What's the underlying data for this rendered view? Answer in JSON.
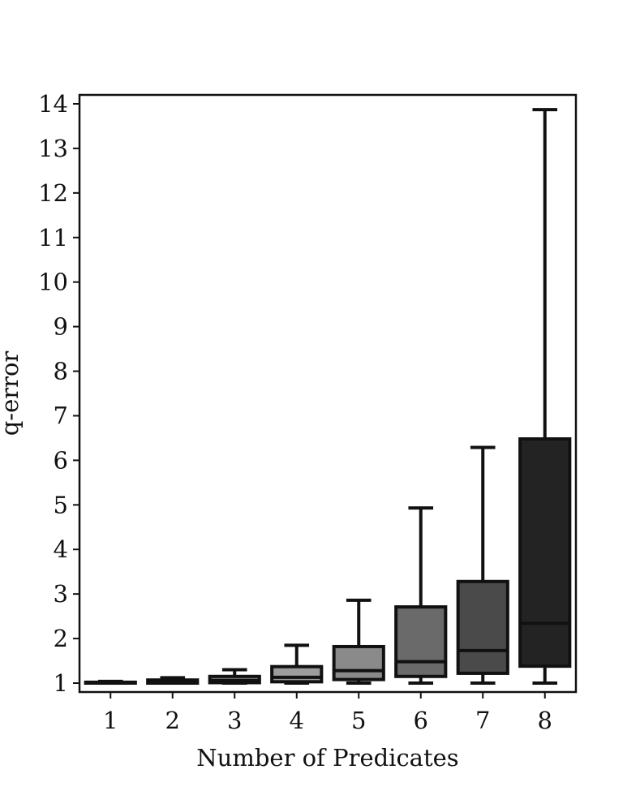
{
  "chart_data": {
    "type": "boxplot",
    "xlabel": "Number of Predicates",
    "ylabel": "q-error",
    "categories": [
      "1",
      "2",
      "3",
      "4",
      "5",
      "6",
      "7",
      "8"
    ],
    "ylim": [
      0.8,
      14.2
    ],
    "yticks": [
      1,
      2,
      3,
      4,
      5,
      6,
      7,
      8,
      9,
      10,
      11,
      12,
      13,
      14
    ],
    "grid": false,
    "legend": "none",
    "colors": [
      "#b0b0b0",
      "#9f9f9f",
      "#8e8e8e",
      "#9c9c9c",
      "#8a8a8a",
      "#6a6a6a",
      "#4a4a4a",
      "#232323"
    ],
    "boxes": [
      {
        "category": "1",
        "whisker_low": 1.0,
        "q1": 1.0,
        "median": 1.0,
        "q3": 1.02,
        "whisker_high": 1.04
      },
      {
        "category": "2",
        "whisker_low": 1.0,
        "q1": 1.0,
        "median": 1.02,
        "q3": 1.07,
        "whisker_high": 1.12
      },
      {
        "category": "3",
        "whisker_low": 1.0,
        "q1": 1.01,
        "median": 1.06,
        "q3": 1.15,
        "whisker_high": 1.3
      },
      {
        "category": "4",
        "whisker_low": 1.0,
        "q1": 1.03,
        "median": 1.13,
        "q3": 1.37,
        "whisker_high": 1.85
      },
      {
        "category": "5",
        "whisker_low": 1.0,
        "q1": 1.08,
        "median": 1.28,
        "q3": 1.82,
        "whisker_high": 2.86
      },
      {
        "category": "6",
        "whisker_low": 1.0,
        "q1": 1.15,
        "median": 1.48,
        "q3": 2.71,
        "whisker_high": 4.93
      },
      {
        "category": "7",
        "whisker_low": 1.0,
        "q1": 1.22,
        "median": 1.73,
        "q3": 3.28,
        "whisker_high": 6.29
      },
      {
        "category": "8",
        "whisker_low": 1.0,
        "q1": 1.38,
        "median": 2.34,
        "q3": 6.48,
        "whisker_high": 13.87
      }
    ]
  }
}
